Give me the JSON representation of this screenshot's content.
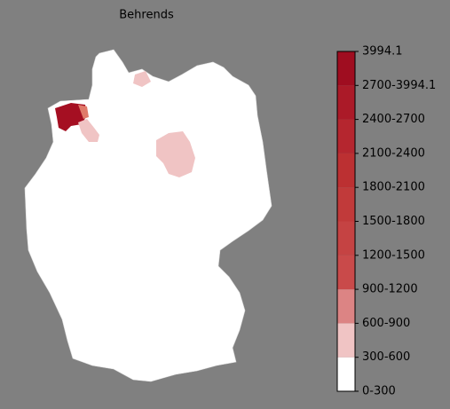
{
  "title": "Behrends",
  "legend": {
    "labels": [
      "0-300",
      "300-600",
      "600-900",
      "900-1200",
      "1200-1500",
      "1500-1800",
      "1800-2100",
      "2100-2400",
      "2400-2700",
      "2700-3994.1",
      "3994.1"
    ],
    "colors": [
      "#ffffff",
      "#f0c4c4",
      "#dc8484",
      "#c94a4a",
      "#c54343",
      "#c13a3a",
      "#bc3032",
      "#b5262f",
      "#ab1a28",
      "#9f0d20"
    ]
  }
}
